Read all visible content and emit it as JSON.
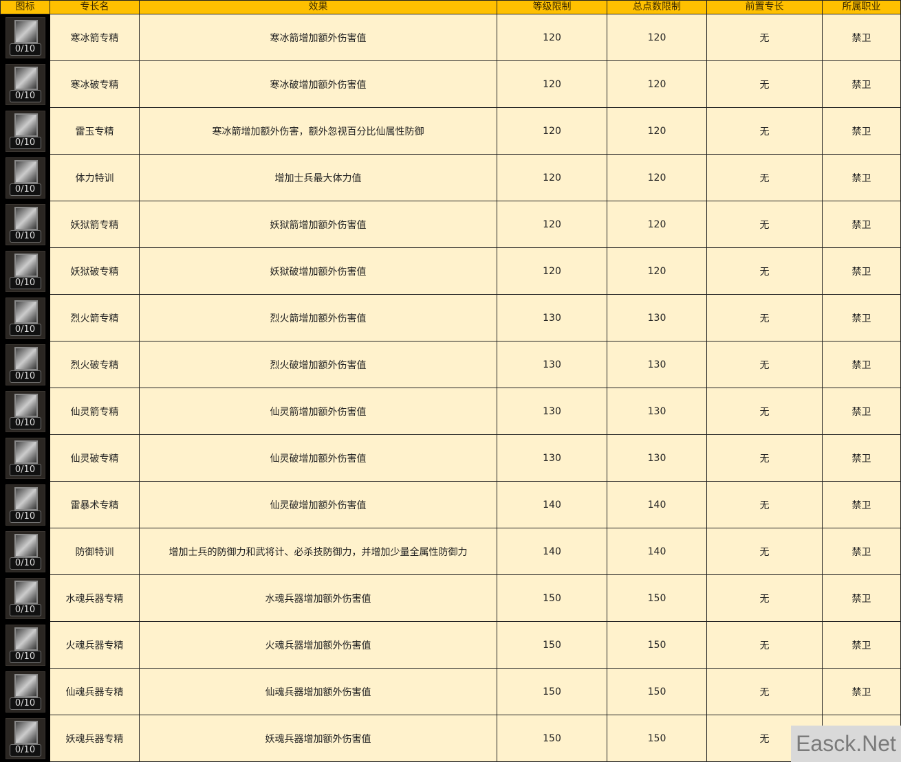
{
  "headers": [
    "图标",
    "专长名",
    "效果",
    "等级限制",
    "总点数限制",
    "前置专长",
    "所属职业"
  ],
  "rows": [
    {
      "count": "0/10",
      "name": "寒冰箭专精",
      "effect": "寒冰箭增加额外伤害值",
      "level": "120",
      "points": "120",
      "prereq": "无",
      "job": "禁卫"
    },
    {
      "count": "0/10",
      "name": "寒冰破专精",
      "effect": "寒冰破增加额外伤害值",
      "level": "120",
      "points": "120",
      "prereq": "无",
      "job": "禁卫"
    },
    {
      "count": "0/10",
      "name": "雷玉专精",
      "effect": "寒冰箭增加额外伤害，额外忽视百分比仙属性防御",
      "level": "120",
      "points": "120",
      "prereq": "无",
      "job": "禁卫"
    },
    {
      "count": "0/10",
      "name": "体力特训",
      "effect": "增加士兵最大体力值",
      "level": "120",
      "points": "120",
      "prereq": "无",
      "job": "禁卫"
    },
    {
      "count": "0/10",
      "name": "妖狱箭专精",
      "effect": "妖狱箭增加额外伤害值",
      "level": "120",
      "points": "120",
      "prereq": "无",
      "job": "禁卫"
    },
    {
      "count": "0/10",
      "name": "妖狱破专精",
      "effect": "妖狱破增加额外伤害值",
      "level": "120",
      "points": "120",
      "prereq": "无",
      "job": "禁卫"
    },
    {
      "count": "0/10",
      "name": "烈火箭专精",
      "effect": "烈火箭增加额外伤害值",
      "level": "130",
      "points": "130",
      "prereq": "无",
      "job": "禁卫"
    },
    {
      "count": "0/10",
      "name": "烈火破专精",
      "effect": "烈火破增加额外伤害值",
      "level": "130",
      "points": "130",
      "prereq": "无",
      "job": "禁卫"
    },
    {
      "count": "0/10",
      "name": "仙灵箭专精",
      "effect": "仙灵箭增加额外伤害值",
      "level": "130",
      "points": "130",
      "prereq": "无",
      "job": "禁卫"
    },
    {
      "count": "0/10",
      "name": "仙灵破专精",
      "effect": "仙灵破增加额外伤害值",
      "level": "130",
      "points": "130",
      "prereq": "无",
      "job": "禁卫"
    },
    {
      "count": "0/10",
      "name": "雷暴术专精",
      "effect": "仙灵破增加额外伤害值",
      "level": "140",
      "points": "140",
      "prereq": "无",
      "job": "禁卫"
    },
    {
      "count": "0/10",
      "name": "防御特训",
      "effect": "增加士兵的防御力和武将计、必杀技防御力，并增加少量全属性防御力",
      "level": "140",
      "points": "140",
      "prereq": "无",
      "job": "禁卫"
    },
    {
      "count": "0/10",
      "name": "水魂兵器专精",
      "effect": "水魂兵器增加额外伤害值",
      "level": "150",
      "points": "150",
      "prereq": "无",
      "job": "禁卫"
    },
    {
      "count": "0/10",
      "name": "火魂兵器专精",
      "effect": "火魂兵器增加额外伤害值",
      "level": "150",
      "points": "150",
      "prereq": "无",
      "job": "禁卫"
    },
    {
      "count": "0/10",
      "name": "仙魂兵器专精",
      "effect": "仙魂兵器增加额外伤害值",
      "level": "150",
      "points": "150",
      "prereq": "无",
      "job": "禁卫"
    },
    {
      "count": "0/10",
      "name": "妖魂兵器专精",
      "effect": "妖魂兵器增加额外伤害值",
      "level": "150",
      "points": "150",
      "prereq": "无",
      "job": ""
    }
  ],
  "watermark": "Easck.Net",
  "colors": {
    "header": "#FFC000",
    "cell": "#FFF2CC",
    "icon_bg": "#000000"
  }
}
